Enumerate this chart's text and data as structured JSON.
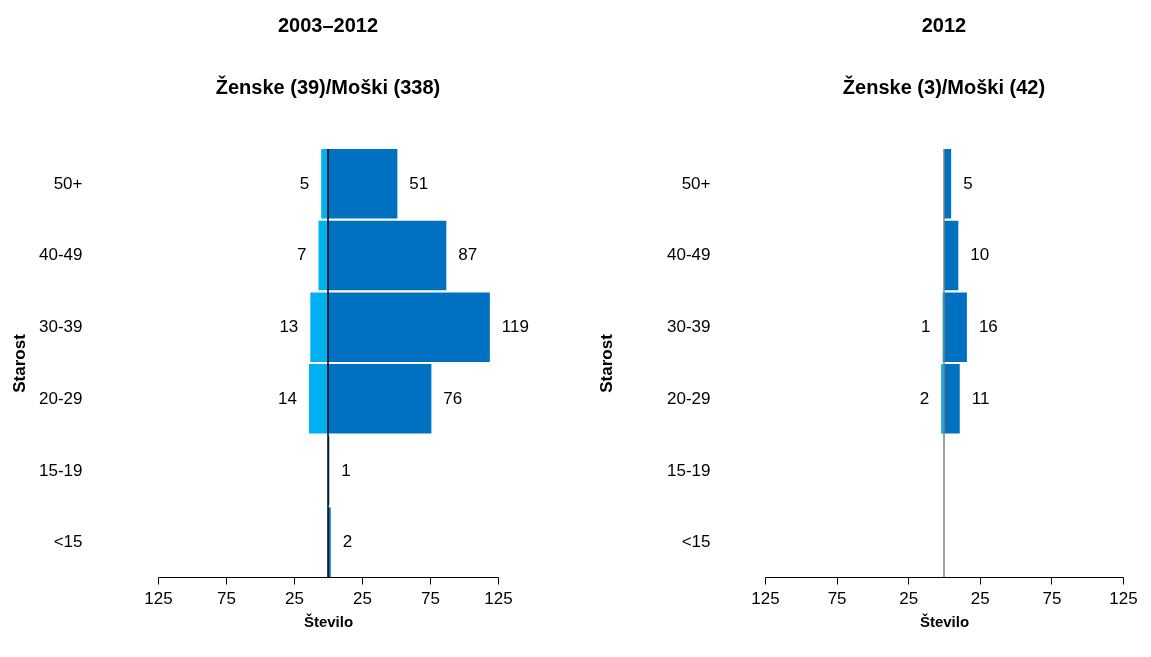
{
  "chart_data": [
    {
      "type": "bar",
      "orientation": "horizontal",
      "title": "2003–2012",
      "subtitle": "Ženske (39)/Moški (338)",
      "xlabel": "Število",
      "ylabel": "Starost",
      "categories": [
        "50+",
        "40-49",
        "30-39",
        "20-29",
        "15-19",
        "<15"
      ],
      "series": [
        {
          "color": "#00b0f0",
          "base": [
            -5,
            -7,
            -13,
            -14,
            null,
            null
          ],
          "values": [
            5,
            7,
            13,
            14,
            null,
            null
          ],
          "value_labels": [
            "5",
            "7",
            "13",
            "14",
            null,
            null
          ]
        },
        {
          "color": "#0070c0",
          "values": [
            51,
            87,
            119,
            76,
            1,
            2
          ],
          "value_labels": [
            "51",
            "87",
            "119",
            "76",
            "1",
            "2"
          ]
        }
      ],
      "xlim": [
        -125,
        125
      ],
      "xticks": [
        {
          "value": -125,
          "label": "125"
        },
        {
          "value": -75,
          "label": "75"
        },
        {
          "value": -25,
          "label": "25"
        },
        25,
        75,
        125
      ],
      "ref_lines": [
        {
          "axis": "x",
          "value": 0,
          "color": "#000000"
        }
      ],
      "grid": false
    },
    {
      "type": "bar",
      "orientation": "horizontal",
      "title": "2012",
      "subtitle": "Ženske (3)/Moški (42)",
      "xlabel": "Število",
      "ylabel": "Starost",
      "categories": [
        "50+",
        "40-49",
        "30-39",
        "20-29",
        "15-19",
        "<15"
      ],
      "series": [
        {
          "color": "#00b0f0",
          "base": [
            null,
            null,
            -1,
            -2,
            null,
            null
          ],
          "values": [
            null,
            null,
            1,
            2,
            null,
            null
          ],
          "value_labels": [
            null,
            null,
            "1",
            "2",
            null,
            null
          ]
        },
        {
          "color": "#0070c0",
          "values": [
            5,
            10,
            16,
            11,
            null,
            null
          ],
          "value_labels": [
            "5",
            "10",
            "16",
            "11",
            null,
            null
          ]
        }
      ],
      "xlim": [
        -125,
        125
      ],
      "xticks": [
        {
          "value": -125,
          "label": "125"
        },
        {
          "value": -75,
          "label": "75"
        },
        {
          "value": -25,
          "label": "25"
        },
        25,
        75,
        125
      ],
      "ref_lines": [
        {
          "axis": "x",
          "value": 0,
          "color": "#808080"
        }
      ],
      "grid": false
    }
  ]
}
